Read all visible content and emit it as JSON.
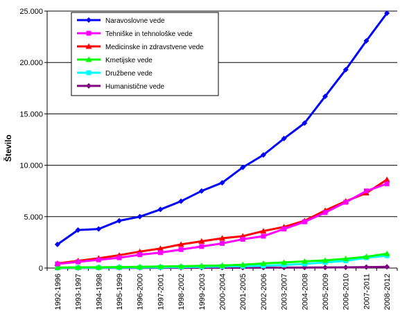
{
  "chart_data": {
    "type": "line",
    "title": "",
    "xlabel": "",
    "ylabel": "Število",
    "ylim": [
      0,
      25000
    ],
    "y_ticks": [
      0,
      5000,
      10000,
      15000,
      20000,
      25000
    ],
    "y_tick_labels": [
      "0",
      "5.000",
      "10.000",
      "15.000",
      "20.000",
      "25.000"
    ],
    "grid": "horizontal",
    "legend_position": "top-left",
    "categories": [
      "1992-1996",
      "1993-1997",
      "1994-1998",
      "1995-1999",
      "1996-2000",
      "1997-2001",
      "1998-2002",
      "1999-2003",
      "2000-2004",
      "2001-2005",
      "2002-2006",
      "2003-2007",
      "2004-2008",
      "2005-2009",
      "2006-2010",
      "2007-2011",
      "2008-2012"
    ],
    "series": [
      {
        "name": "Naravoslovne vede",
        "color": "#0000ff",
        "marker": "diamond",
        "values": [
          2300,
          3700,
          3800,
          4600,
          5000,
          5700,
          6500,
          7500,
          8300,
          9800,
          11000,
          12600,
          14100,
          16700,
          19300,
          22100,
          24800
        ]
      },
      {
        "name": "Tehniške in tehnološke vede",
        "color": "#ff00ff",
        "marker": "square",
        "values": [
          400,
          600,
          800,
          1000,
          1300,
          1500,
          1800,
          2100,
          2400,
          2800,
          3100,
          3800,
          4500,
          5400,
          6400,
          7500,
          8200
        ]
      },
      {
        "name": "Medicinske in zdravstvene vede",
        "color": "#ff0000",
        "marker": "triangle",
        "values": [
          450,
          700,
          950,
          1250,
          1600,
          1900,
          2300,
          2600,
          2900,
          3100,
          3600,
          4000,
          4600,
          5600,
          6500,
          7300,
          8600
        ]
      },
      {
        "name": "Kmetijske vede",
        "color": "#00ff00",
        "marker": "triangle",
        "values": [
          50,
          70,
          80,
          100,
          120,
          150,
          180,
          220,
          250,
          320,
          450,
          550,
          650,
          750,
          900,
          1100,
          1400
        ]
      },
      {
        "name": "Družbene vede",
        "color": "#00ffff",
        "marker": "square",
        "values": [
          20,
          30,
          40,
          50,
          60,
          80,
          100,
          120,
          150,
          180,
          220,
          300,
          400,
          550,
          700,
          1000,
          1200
        ]
      },
      {
        "name": "Humanistične vede",
        "color": "#800080",
        "marker": "diamond",
        "values": [
          10,
          12,
          15,
          18,
          20,
          22,
          25,
          28,
          30,
          35,
          40,
          45,
          50,
          60,
          70,
          90,
          120
        ]
      }
    ]
  }
}
